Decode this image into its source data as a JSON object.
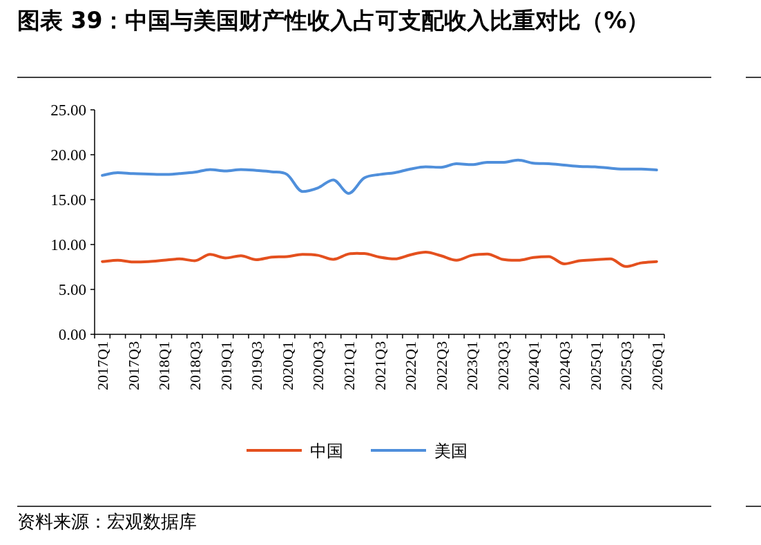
{
  "chart_data": {
    "type": "line",
    "title": "图表 39：中国与美国财产性收入占可支配收入比重对比（%）",
    "categories": [
      "2017Q1",
      null,
      "2017Q3",
      null,
      "2018Q1",
      null,
      "2018Q3",
      null,
      "2019Q1",
      null,
      "2019Q3",
      null,
      "2020Q1",
      null,
      "2020Q3",
      null,
      "2021Q1",
      null,
      "2021Q3",
      null,
      "2022Q1",
      null,
      "2022Q3",
      null,
      "2023Q1",
      null,
      "2023Q3",
      null,
      "2024Q1",
      null,
      "2024Q3",
      null,
      "2025Q1",
      null,
      "2025Q3",
      null,
      "2026Q1"
    ],
    "series": [
      {
        "name": "中国",
        "color": "#e4501e",
        "values": [
          8.1,
          8.25,
          8.05,
          8.1,
          8.25,
          8.4,
          8.2,
          8.9,
          8.5,
          8.75,
          8.3,
          8.6,
          8.65,
          8.9,
          8.8,
          8.35,
          8.95,
          9.0,
          8.6,
          8.4,
          8.85,
          9.15,
          8.75,
          8.25,
          8.8,
          8.95,
          8.35,
          8.25,
          8.55,
          8.65,
          7.85,
          8.2,
          8.3,
          8.4,
          7.55,
          7.95,
          8.1
        ]
      },
      {
        "name": "美国",
        "color": "#4f8fdb",
        "values": [
          17.7,
          18.0,
          17.9,
          17.85,
          17.8,
          17.9,
          18.05,
          18.35,
          18.2,
          18.35,
          18.25,
          18.1,
          17.8,
          15.9,
          16.3,
          17.2,
          15.7,
          17.4,
          17.8,
          18.0,
          18.4,
          18.65,
          18.6,
          19.0,
          18.9,
          19.15,
          19.15,
          19.4,
          19.05,
          19.0,
          18.85,
          18.7,
          18.65,
          18.5,
          18.4,
          18.4,
          18.3
        ]
      }
    ],
    "ylim": [
      0,
      25
    ],
    "yticks": [
      {
        "value": 0,
        "label": "0.00"
      },
      {
        "value": 5,
        "label": "5.00"
      },
      {
        "value": 10,
        "label": "10.00"
      },
      {
        "value": 15,
        "label": "15.00"
      },
      {
        "value": 20,
        "label": "20.00"
      },
      {
        "value": 25,
        "label": "25.00"
      }
    ],
    "grid": false,
    "legend": "bottom",
    "marker": "none",
    "line_style": "solid",
    "annotations": [
      "资料来源：宏观数据库"
    ]
  }
}
